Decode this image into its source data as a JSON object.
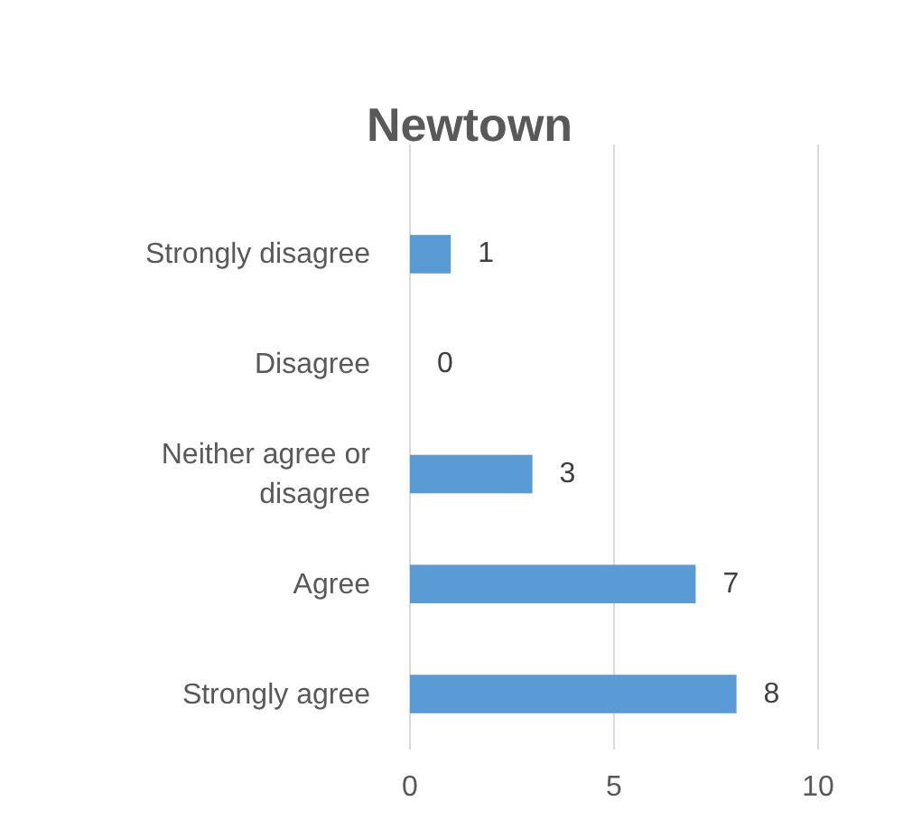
{
  "chart_data": {
    "type": "bar",
    "orientation": "horizontal",
    "title": "Newtown",
    "categories": [
      "Strongly disagree",
      "Disagree",
      "Neither agree or disagree",
      "Agree",
      "Strongly agree"
    ],
    "values": [
      1,
      0,
      3,
      7,
      8
    ],
    "color": "#5b9bd5",
    "xlim": [
      0,
      10
    ],
    "xticks": [
      0,
      5,
      10
    ],
    "grid": "x",
    "data_labels": true
  }
}
